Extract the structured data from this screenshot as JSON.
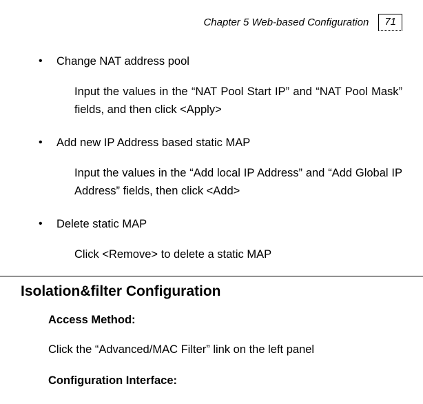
{
  "header": {
    "chapter": "Chapter 5 Web-based Configuration",
    "page_number": "71"
  },
  "bullets": [
    {
      "label": "Change NAT address pool",
      "desc": "Input the values in the “NAT Pool Start IP” and “NAT Pool Mask” fields, and then click <Apply>"
    },
    {
      "label": "Add new IP Address based static MAP",
      "desc": "Input the values in the “Add local IP Address” and “Add Global IP Address” fields, then click <Add>"
    },
    {
      "label": "Delete static MAP",
      "desc": "Click <Remove> to delete a static MAP"
    }
  ],
  "section": {
    "heading": "Isolation&filter Configuration",
    "access_label": "Access Method:",
    "access_text": "Click the “Advanced/MAC Filter” link on the left panel",
    "config_label": "Configuration Interface:"
  },
  "style": {
    "font_family": "Arial",
    "text_color": "#000000",
    "bg_color": "#ffffff",
    "body_fontsize": 16.5,
    "heading_fontsize": 21,
    "header_fontsize": 15,
    "line_height": 26
  }
}
